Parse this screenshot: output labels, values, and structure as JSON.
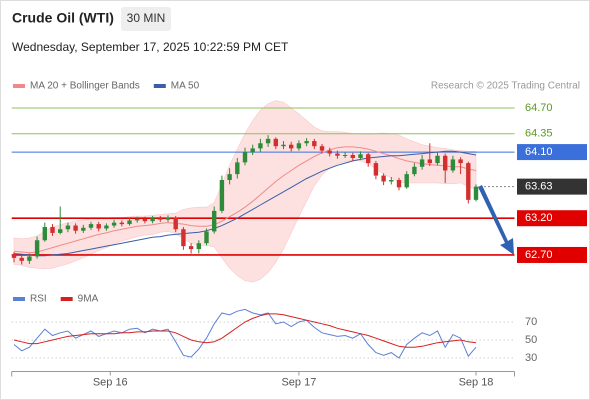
{
  "header": {
    "title": "Crude Oil (WTI)",
    "interval": "30 MIN",
    "datetime": "Wednesday, September 17, 2025 10:22:59 PM CET"
  },
  "chart_data": [
    {
      "type": "candlestick",
      "credit": "Research © 2025 Trading Central",
      "up_color": "#2e8b3a",
      "down_color": "#d32f2f",
      "xlim": [
        -0.3,
        65
      ],
      "ylim": [
        62.4,
        64.9
      ],
      "x": [
        0,
        1,
        2,
        3,
        4,
        5,
        6,
        7,
        8,
        9,
        10,
        11,
        12,
        13,
        14,
        15,
        16,
        17,
        18,
        19,
        20,
        21,
        22,
        23,
        24,
        25,
        26,
        27,
        28,
        29,
        30,
        31,
        32,
        33,
        34,
        35,
        36,
        37,
        38,
        39,
        40,
        41,
        42,
        43,
        44,
        45,
        46,
        47,
        48,
        49,
        50,
        51,
        52,
        53,
        54,
        55,
        56,
        57,
        58,
        59,
        60
      ],
      "open": [
        62.7,
        62.66,
        62.62,
        62.68,
        62.9,
        63.08,
        63.0,
        63.05,
        63.1,
        63.03,
        63.07,
        63.12,
        63.06,
        63.1,
        63.14,
        63.12,
        63.17,
        63.19,
        63.16,
        63.2,
        63.18,
        63.21,
        63.05,
        62.82,
        62.78,
        62.86,
        63.02,
        63.3,
        63.72,
        63.8,
        63.96,
        64.1,
        64.15,
        64.22,
        64.28,
        64.18,
        64.2,
        64.15,
        64.22,
        64.25,
        64.18,
        64.12,
        64.08,
        64.05,
        64.06,
        64.02,
        64.07,
        63.95,
        63.78,
        63.7,
        63.72,
        63.62,
        63.8,
        63.9,
        64.0,
        63.95,
        64.05,
        63.85,
        64.0,
        63.95,
        63.45
      ],
      "high": [
        62.74,
        62.7,
        62.72,
        62.95,
        63.14,
        63.12,
        63.36,
        63.14,
        63.13,
        63.11,
        63.15,
        63.15,
        63.13,
        63.18,
        63.17,
        63.2,
        63.22,
        63.22,
        63.23,
        63.23,
        63.24,
        63.23,
        63.08,
        62.86,
        62.9,
        63.06,
        63.36,
        63.78,
        63.88,
        64.02,
        64.16,
        64.2,
        64.28,
        64.33,
        64.3,
        64.25,
        64.24,
        64.26,
        64.29,
        64.28,
        64.21,
        64.16,
        64.12,
        64.1,
        64.09,
        64.11,
        64.09,
        63.98,
        63.81,
        63.76,
        63.75,
        63.84,
        63.95,
        64.06,
        64.22,
        64.1,
        64.08,
        64.05,
        64.03,
        63.97,
        63.66
      ],
      "low": [
        62.6,
        62.57,
        62.58,
        62.65,
        62.88,
        62.96,
        62.98,
        63.01,
        62.99,
        63.0,
        63.04,
        63.02,
        63.03,
        63.07,
        63.09,
        63.1,
        63.14,
        63.13,
        63.13,
        63.15,
        63.15,
        63.01,
        62.77,
        62.72,
        62.72,
        62.83,
        62.99,
        63.27,
        63.66,
        63.74,
        63.92,
        64.06,
        64.1,
        64.17,
        64.14,
        64.14,
        64.11,
        64.12,
        64.18,
        64.14,
        64.08,
        64.04,
        64.01,
        64.02,
        63.98,
        63.99,
        63.9,
        63.73,
        63.65,
        63.66,
        63.58,
        63.6,
        63.77,
        63.86,
        63.91,
        63.92,
        63.68,
        63.82,
        63.8,
        63.4,
        63.43
      ],
      "close": [
        62.66,
        62.62,
        62.68,
        62.9,
        63.08,
        63.0,
        63.05,
        63.1,
        63.03,
        63.07,
        63.12,
        63.06,
        63.1,
        63.14,
        63.12,
        63.17,
        63.19,
        63.16,
        63.2,
        63.18,
        63.21,
        63.05,
        62.82,
        62.78,
        62.86,
        63.02,
        63.3,
        63.72,
        63.8,
        63.96,
        64.1,
        64.15,
        64.22,
        64.28,
        64.18,
        64.2,
        64.15,
        64.22,
        64.25,
        64.18,
        64.12,
        64.08,
        64.05,
        64.06,
        64.02,
        64.07,
        63.95,
        63.78,
        63.7,
        63.72,
        63.62,
        63.8,
        63.9,
        64.0,
        63.95,
        64.05,
        63.85,
        64.0,
        63.95,
        63.45,
        63.63
      ],
      "series": [
        {
          "name": "MA 20 + Bollinger Bands",
          "color": "#f08a8a",
          "band_color": "#fde0e0",
          "values": [
            62.75,
            62.74,
            62.73,
            62.74,
            62.77,
            62.8,
            62.83,
            62.86,
            62.89,
            62.92,
            62.95,
            62.98,
            63.0,
            63.03,
            63.05,
            63.07,
            63.09,
            63.1,
            63.11,
            63.13,
            63.14,
            63.13,
            63.12,
            63.1,
            63.09,
            63.09,
            63.11,
            63.16,
            63.22,
            63.28,
            63.35,
            63.43,
            63.52,
            63.61,
            63.7,
            63.78,
            63.85,
            63.92,
            63.98,
            64.04,
            64.09,
            64.13,
            64.16,
            64.17,
            64.17,
            64.16,
            64.14,
            64.11,
            64.08,
            64.05,
            64.01,
            63.98,
            63.96,
            63.94,
            63.93,
            63.92,
            63.91,
            63.9,
            63.9,
            63.87,
            63.85
          ],
          "upper": [
            62.93,
            62.92,
            62.93,
            62.96,
            63.03,
            63.08,
            63.11,
            63.14,
            63.16,
            63.18,
            63.19,
            63.2,
            63.2,
            63.21,
            63.21,
            63.22,
            63.23,
            63.23,
            63.24,
            63.25,
            63.26,
            63.27,
            63.32,
            63.34,
            63.35,
            63.35,
            63.41,
            63.66,
            63.92,
            64.14,
            64.35,
            64.53,
            64.67,
            64.76,
            64.8,
            64.78,
            64.7,
            64.62,
            64.53,
            64.44,
            64.39,
            64.38,
            64.38,
            64.37,
            64.35,
            64.34,
            64.34,
            64.35,
            64.36,
            64.35,
            64.33,
            64.28,
            64.24,
            64.2,
            64.18,
            64.16,
            64.15,
            64.13,
            64.12,
            64.11,
            64.11
          ],
          "lower": [
            62.57,
            62.56,
            62.53,
            62.52,
            62.51,
            62.52,
            62.55,
            62.58,
            62.62,
            62.66,
            62.71,
            62.76,
            62.8,
            62.85,
            62.89,
            62.92,
            62.95,
            62.97,
            62.98,
            63.01,
            63.02,
            62.99,
            62.92,
            62.86,
            62.83,
            62.83,
            62.81,
            62.66,
            62.52,
            62.42,
            62.35,
            62.33,
            62.37,
            62.46,
            62.6,
            62.78,
            63.0,
            63.22,
            63.43,
            63.64,
            63.79,
            63.88,
            63.94,
            63.97,
            63.99,
            63.98,
            63.94,
            63.87,
            63.8,
            63.75,
            63.69,
            63.68,
            63.68,
            63.68,
            63.68,
            63.68,
            63.67,
            63.67,
            63.68,
            63.63,
            63.59
          ]
        },
        {
          "name": "MA 50",
          "color": "#3a5ea8",
          "values": [
            62.72,
            62.71,
            62.7,
            62.69,
            62.69,
            62.7,
            62.71,
            62.72,
            62.74,
            62.76,
            62.78,
            62.8,
            62.82,
            62.84,
            62.86,
            62.88,
            62.9,
            62.92,
            62.94,
            62.95,
            62.97,
            62.98,
            62.99,
            63.0,
            63.01,
            63.03,
            63.06,
            63.1,
            63.15,
            63.2,
            63.26,
            63.32,
            63.38,
            63.44,
            63.5,
            63.56,
            63.62,
            63.68,
            63.74,
            63.79,
            63.84,
            63.88,
            63.92,
            63.95,
            63.98,
            64.0,
            64.02,
            64.03,
            64.04,
            64.05,
            64.05,
            64.06,
            64.07,
            64.08,
            64.09,
            64.1,
            64.11,
            64.11,
            64.1,
            64.08,
            64.06
          ]
        }
      ],
      "levels": [
        {
          "value": 64.7,
          "label": "64.70",
          "color": "#8cc35a",
          "text_color": "#5a9a1e",
          "box": false
        },
        {
          "value": 64.35,
          "label": "64.35",
          "color": "#8cc35a",
          "text_color": "#5a9a1e",
          "box": false
        },
        {
          "value": 64.1,
          "label": "64.10",
          "color": "#3b6fd9",
          "text_color": "#ffffff",
          "box": true
        },
        {
          "value": 63.63,
          "label": "63.63",
          "color": "#333333",
          "text_color": "#ffffff",
          "box": true,
          "dashed": true
        },
        {
          "value": 63.2,
          "label": "63.20",
          "color": "#e00000",
          "text_color": "#ffffff",
          "box": true
        },
        {
          "value": 62.7,
          "label": "62.70",
          "color": "#e00000",
          "text_color": "#ffffff",
          "box": true
        }
      ]
    },
    {
      "type": "line",
      "xlim": [
        -0.3,
        65
      ],
      "ylim": [
        15,
        85
      ],
      "yticks": [
        70,
        50,
        30
      ],
      "xticks": [
        {
          "value": 12.5,
          "label": "Sep 16"
        },
        {
          "value": 37,
          "label": "Sep 17"
        },
        {
          "value": 60,
          "label": "Sep 18"
        }
      ],
      "x": [
        0,
        1,
        2,
        3,
        4,
        5,
        6,
        7,
        8,
        9,
        10,
        11,
        12,
        13,
        14,
        15,
        16,
        17,
        18,
        19,
        20,
        21,
        22,
        23,
        24,
        25,
        26,
        27,
        28,
        29,
        30,
        31,
        32,
        33,
        34,
        35,
        36,
        37,
        38,
        39,
        40,
        41,
        42,
        43,
        44,
        45,
        46,
        47,
        48,
        49,
        50,
        51,
        52,
        53,
        54,
        55,
        56,
        57,
        58,
        59,
        60
      ],
      "series": [
        {
          "name": "RSI",
          "color": "#5b80d8",
          "values": [
            45,
            38,
            42,
            52,
            62,
            55,
            58,
            60,
            52,
            56,
            60,
            54,
            57,
            60,
            58,
            62,
            63,
            58,
            62,
            60,
            62,
            48,
            33,
            31,
            40,
            52,
            68,
            80,
            78,
            82,
            84,
            80,
            78,
            80,
            68,
            70,
            65,
            70,
            72,
            64,
            58,
            56,
            54,
            55,
            52,
            57,
            45,
            36,
            33,
            36,
            30,
            45,
            52,
            58,
            55,
            60,
            42,
            56,
            52,
            32,
            42
          ]
        },
        {
          "name": "9MA",
          "color": "#d62020",
          "values": [
            50,
            48,
            46,
            46,
            48,
            50,
            52,
            54,
            55,
            56,
            57,
            57,
            57,
            57,
            58,
            58,
            59,
            59,
            60,
            60,
            60,
            58,
            54,
            50,
            48,
            47,
            48,
            52,
            58,
            64,
            70,
            74,
            77,
            79,
            79,
            78,
            76,
            74,
            72,
            70,
            68,
            66,
            63,
            61,
            59,
            57,
            55,
            52,
            49,
            46,
            43,
            42,
            42,
            43,
            45,
            47,
            48,
            49,
            50,
            48,
            47
          ]
        }
      ]
    }
  ]
}
